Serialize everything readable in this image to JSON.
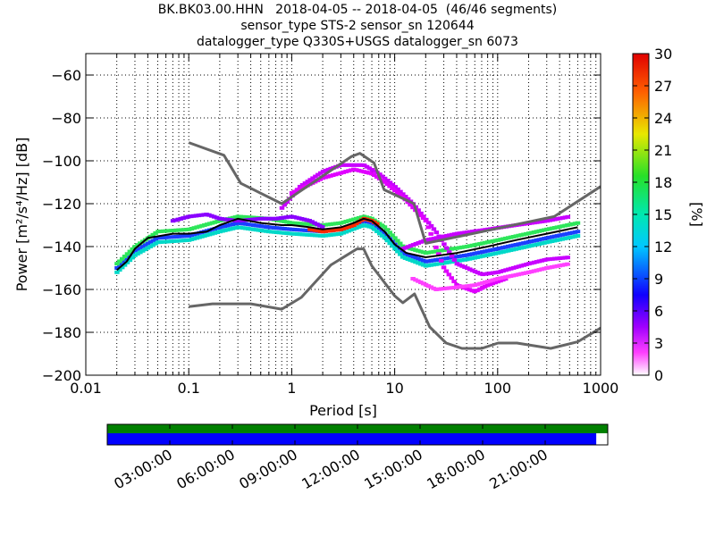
{
  "title_lines": [
    "BK.BK03.00.HHN   2018-04-05 -- 2018-04-05  (46/46 segments)",
    "sensor_type STS-2 sensor_sn 120644",
    "datalogger_type Q330S+USGS datalogger_sn 6073"
  ],
  "chart_data": {
    "type": "heatmap",
    "xlabel": "Period [s]",
    "ylabel": "Power [m²/s⁴/Hz] [dB]",
    "xscale": "log",
    "xlim": [
      0.01,
      1000
    ],
    "ylim": [
      -200,
      -50
    ],
    "x_ticks": [
      {
        "value": 0.01,
        "label": "0.01"
      },
      {
        "value": 0.1,
        "label": "0.1"
      },
      {
        "value": 1,
        "label": "1"
      },
      {
        "value": 10,
        "label": "10"
      },
      {
        "value": 100,
        "label": "100"
      },
      {
        "value": 1000,
        "label": "1000"
      }
    ],
    "y_ticks": [
      {
        "value": -60,
        "label": "−60"
      },
      {
        "value": -80,
        "label": "−80"
      },
      {
        "value": -100,
        "label": "−100"
      },
      {
        "value": -120,
        "label": "−120"
      },
      {
        "value": -140,
        "label": "−140"
      },
      {
        "value": -160,
        "label": "−160"
      },
      {
        "value": -180,
        "label": "−180"
      },
      {
        "value": -200,
        "label": "−200"
      }
    ],
    "grid": true,
    "colorbar": {
      "label": "[%]",
      "min": 0,
      "max": 30,
      "ticks": [
        "0",
        "3",
        "6",
        "9",
        "12",
        "15",
        "18",
        "21",
        "24",
        "27",
        "30"
      ]
    },
    "high_noise_model": {
      "color": "#666666",
      "points": [
        [
          0.1,
          -91.5
        ],
        [
          0.22,
          -97.4
        ],
        [
          0.32,
          -110.5
        ],
        [
          0.8,
          -120
        ],
        [
          3.8,
          -98
        ],
        [
          4.6,
          -96.5
        ],
        [
          6.3,
          -101
        ],
        [
          7.9,
          -113.5
        ],
        [
          15.4,
          -120
        ],
        [
          20,
          -138.5
        ],
        [
          354.8,
          -126
        ],
        [
          1000,
          -112
        ]
      ]
    },
    "low_noise_model": {
      "color": "#666666",
      "points": [
        [
          0.1,
          -168
        ],
        [
          0.17,
          -166.7
        ],
        [
          0.4,
          -166.7
        ],
        [
          0.8,
          -169.2
        ],
        [
          1.24,
          -163.7
        ],
        [
          2.4,
          -148.6
        ],
        [
          4.3,
          -141.1
        ],
        [
          5,
          -141.1
        ],
        [
          6,
          -149
        ],
        [
          10,
          -163
        ],
        [
          12,
          -166.2
        ],
        [
          15.6,
          -162.1
        ],
        [
          21.9,
          -177.5
        ],
        [
          31.6,
          -185
        ],
        [
          45,
          -187.5
        ],
        [
          70,
          -187.5
        ],
        [
          101,
          -185
        ],
        [
          154,
          -185
        ],
        [
          328,
          -187.5
        ],
        [
          600,
          -184.4
        ],
        [
          1000,
          -178
        ]
      ]
    },
    "mode_curve": {
      "color": "#000000",
      "points": [
        [
          0.02,
          -151
        ],
        [
          0.025,
          -147
        ],
        [
          0.03,
          -141
        ],
        [
          0.04,
          -136
        ],
        [
          0.07,
          -134
        ],
        [
          0.1,
          -134
        ],
        [
          0.15,
          -133
        ],
        [
          0.2,
          -130
        ],
        [
          0.3,
          -127
        ],
        [
          0.5,
          -129
        ],
        [
          0.8,
          -130
        ],
        [
          1,
          -130
        ],
        [
          1.5,
          -131
        ],
        [
          2,
          -132
        ],
        [
          3,
          -131
        ],
        [
          4,
          -129
        ],
        [
          5,
          -127
        ],
        [
          6,
          -128
        ],
        [
          8,
          -133
        ],
        [
          10,
          -139
        ],
        [
          13,
          -143
        ],
        [
          20,
          -145
        ],
        [
          40,
          -143
        ],
        [
          80,
          -140
        ],
        [
          150,
          -137
        ],
        [
          300,
          -134
        ],
        [
          600,
          -131
        ]
      ]
    },
    "psd_bands": [
      {
        "color": "#1a3fff",
        "points": [
          [
            0.02,
            -150
          ],
          [
            0.03,
            -142
          ],
          [
            0.05,
            -136
          ],
          [
            0.1,
            -135
          ],
          [
            0.2,
            -131
          ],
          [
            0.3,
            -129
          ],
          [
            0.6,
            -131
          ],
          [
            1,
            -132
          ],
          [
            2,
            -133
          ],
          [
            3,
            -132
          ],
          [
            5,
            -128
          ],
          [
            6,
            -129
          ],
          [
            8,
            -134
          ],
          [
            12,
            -143
          ],
          [
            20,
            -147
          ],
          [
            50,
            -144
          ],
          [
            100,
            -141
          ],
          [
            300,
            -136
          ],
          [
            600,
            -133
          ]
        ]
      },
      {
        "color": "#00d8c8",
        "points": [
          [
            0.02,
            -152
          ],
          [
            0.03,
            -144
          ],
          [
            0.05,
            -138
          ],
          [
            0.1,
            -137
          ],
          [
            0.2,
            -133
          ],
          [
            0.3,
            -131
          ],
          [
            0.6,
            -133
          ],
          [
            1,
            -134
          ],
          [
            2,
            -135
          ],
          [
            3,
            -134
          ],
          [
            5,
            -130
          ],
          [
            6,
            -131
          ],
          [
            8,
            -136
          ],
          [
            12,
            -145
          ],
          [
            20,
            -149
          ],
          [
            50,
            -146
          ],
          [
            100,
            -143
          ],
          [
            300,
            -138
          ],
          [
            600,
            -135
          ]
        ]
      },
      {
        "color": "#2ee65a",
        "points": [
          [
            0.02,
            -148
          ],
          [
            0.03,
            -140
          ],
          [
            0.05,
            -133
          ],
          [
            0.1,
            -132
          ],
          [
            0.2,
            -128
          ],
          [
            0.3,
            -126
          ],
          [
            0.6,
            -127
          ],
          [
            1,
            -129
          ],
          [
            2,
            -130
          ],
          [
            3,
            -129
          ],
          [
            5,
            -126
          ],
          [
            6,
            -127
          ],
          [
            8,
            -131
          ],
          [
            12,
            -140
          ],
          [
            20,
            -143
          ],
          [
            50,
            -140
          ],
          [
            100,
            -137
          ],
          [
            300,
            -132
          ],
          [
            600,
            -129
          ]
        ]
      },
      {
        "color": "#ff2a00",
        "points": [
          [
            1.5,
            -132
          ],
          [
            2,
            -133
          ],
          [
            3,
            -132
          ],
          [
            4,
            -130
          ],
          [
            5,
            -127
          ],
          [
            6,
            -128
          ],
          [
            7,
            -130
          ]
        ]
      },
      {
        "color": "#8a00ff",
        "points": [
          [
            0.07,
            -128
          ],
          [
            0.1,
            -126
          ],
          [
            0.15,
            -125
          ],
          [
            0.2,
            -127
          ],
          [
            0.3,
            -128
          ],
          [
            0.5,
            -127
          ],
          [
            0.7,
            -127
          ],
          [
            1,
            -126
          ],
          [
            1.5,
            -128
          ],
          [
            2,
            -131
          ]
        ]
      },
      {
        "color": "#c800ff",
        "points": [
          [
            0.8,
            -122
          ],
          [
            1.2,
            -112
          ],
          [
            2,
            -105
          ],
          [
            3,
            -102
          ],
          [
            5,
            -102
          ],
          [
            7,
            -106
          ],
          [
            10,
            -112
          ],
          [
            15,
            -120
          ],
          [
            25,
            -133
          ],
          [
            40,
            -148
          ],
          [
            70,
            -153
          ],
          [
            100,
            -152
          ],
          [
            200,
            -148
          ],
          [
            300,
            -146
          ],
          [
            500,
            -145
          ]
        ]
      },
      {
        "color": "#e000ff",
        "points": [
          [
            1,
            -115
          ],
          [
            2,
            -108
          ],
          [
            4,
            -104
          ],
          [
            6,
            -106
          ],
          [
            8,
            -110
          ],
          [
            12,
            -117
          ],
          [
            20,
            -128
          ],
          [
            30,
            -150
          ],
          [
            40,
            -158
          ],
          [
            60,
            -161
          ],
          [
            80,
            -158
          ],
          [
            120,
            -155
          ]
        ]
      },
      {
        "color": "#c800ff",
        "points": [
          [
            12,
            -141
          ],
          [
            20,
            -137
          ],
          [
            40,
            -134
          ],
          [
            80,
            -132
          ],
          [
            150,
            -130
          ],
          [
            300,
            -128
          ],
          [
            500,
            -126
          ]
        ]
      },
      {
        "color": "#ff40ff",
        "points": [
          [
            15,
            -155
          ],
          [
            25,
            -160
          ],
          [
            40,
            -159
          ],
          [
            60,
            -158
          ],
          [
            100,
            -155
          ],
          [
            200,
            -152
          ],
          [
            300,
            -150
          ],
          [
            500,
            -148
          ]
        ]
      }
    ]
  },
  "timeline": {
    "labels": [
      "03:00:00",
      "06:00:00",
      "09:00:00",
      "12:00:00",
      "15:00:00",
      "18:00:00",
      "21:00:00"
    ],
    "top_bar_color": "#008000",
    "bottom_bar_color": "#0000ff",
    "coverage_fraction": 0.977
  }
}
